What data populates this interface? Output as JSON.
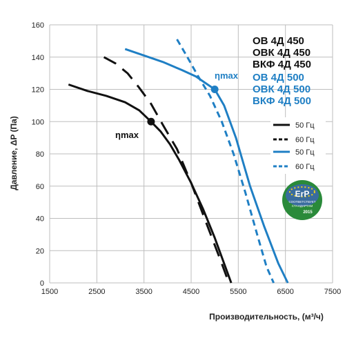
{
  "chart_data": {
    "type": "line",
    "xlabel": "Производительность, (м³/ч)",
    "ylabel": "Давление, ΔP (Па)",
    "xlim": [
      1500,
      7500
    ],
    "ylim": [
      0,
      160
    ],
    "x_ticks": [
      "1500",
      "2500",
      "3500",
      "4500",
      "5500",
      "6500",
      "7500"
    ],
    "y_ticks": [
      "0",
      "20",
      "40",
      "60",
      "80",
      "100",
      "120",
      "140",
      "160"
    ],
    "grid": true,
    "models_450": [
      "ОВ 4Д 450",
      "ОВК 4Д 450",
      "ВКФ 4Д 450"
    ],
    "models_500": [
      "ОВ 4Д 500",
      "ОВК 4Д 500",
      "ВКФ 4Д 500"
    ],
    "legend": [
      {
        "label": "50 Гц",
        "color": "#111111",
        "dash": "solid"
      },
      {
        "label": "60 Гц",
        "color": "#111111",
        "dash": "dashed"
      },
      {
        "label": "50 Гц",
        "color": "#1f7fc4",
        "dash": "solid"
      },
      {
        "label": "60 Гц",
        "color": "#1f7fc4",
        "dash": "dashed"
      }
    ],
    "peak_label": "ηmax",
    "series": [
      {
        "group": "450",
        "freq": "50 Гц",
        "color": "#111111",
        "dash": "solid",
        "x": [
          1900,
          2300,
          2700,
          3100,
          3400,
          3650,
          3850,
          4050,
          4250,
          4500,
          4750,
          5000,
          5200,
          5350
        ],
        "y": [
          123,
          119,
          116,
          112,
          107,
          100,
          94,
          86,
          76,
          62,
          46,
          28,
          12,
          0
        ]
      },
      {
        "group": "450",
        "freq": "60 Гц",
        "color": "#111111",
        "dash": "dashed",
        "x": [
          2650,
          2900,
          3150,
          3400,
          3650,
          3900,
          4200,
          4500,
          4850,
          5150,
          5300
        ],
        "y": [
          140,
          136,
          130,
          121,
          111,
          98,
          83,
          62,
          35,
          12,
          0
        ]
      },
      {
        "group": "500",
        "freq": "50 Гц",
        "color": "#1f7fc4",
        "dash": "solid",
        "x": [
          3100,
          3500,
          3900,
          4300,
          4600,
          4850,
          5000,
          5200,
          5450,
          5750,
          6050,
          6350,
          6550
        ],
        "y": [
          145,
          141,
          137,
          132,
          128,
          123,
          120,
          110,
          90,
          60,
          35,
          12,
          0
        ]
      },
      {
        "group": "500",
        "freq": "60 Гц",
        "color": "#1f7fc4",
        "dash": "dashed",
        "x": [
          4200,
          4400,
          4650,
          4900,
          5150,
          5400,
          5650,
          5900,
          6100,
          6250
        ],
        "y": [
          151,
          141,
          128,
          116,
          100,
          80,
          56,
          30,
          10,
          0
        ]
      }
    ],
    "peaks": [
      {
        "group": "450",
        "x": 3650,
        "y": 100,
        "color": "#111111"
      },
      {
        "group": "500",
        "x": 5000,
        "y": 120,
        "color": "#1f7fc4"
      }
    ]
  },
  "badge": {
    "text_main": "ErP",
    "text_sub1": "СООТВЕТСТВУЕТ",
    "text_sub2": "СТАНДАРТАМ",
    "year": "2015"
  }
}
